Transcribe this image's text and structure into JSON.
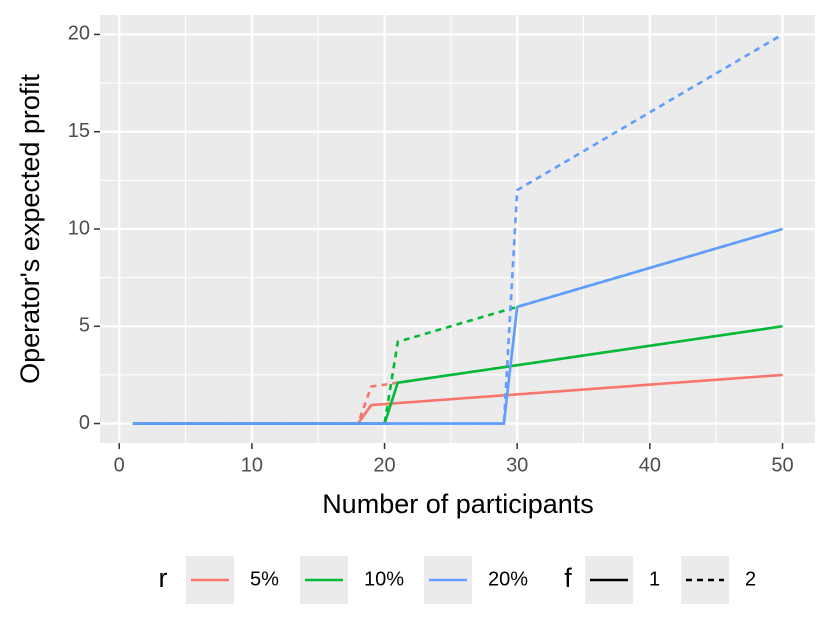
{
  "chart_data": {
    "type": "line",
    "xlabel": "Number of participants",
    "ylabel": "Operator's expected profit",
    "xlim": [
      -1.45,
      52.45
    ],
    "ylim": [
      -1,
      21
    ],
    "xticks": [
      0,
      10,
      20,
      30,
      40,
      50
    ],
    "yticks": [
      0,
      5,
      10,
      15,
      20
    ],
    "grid": true,
    "legend_position": "bottom",
    "color_legend": {
      "title": "r",
      "labels": [
        "5%",
        "10%",
        "20%"
      ],
      "colors": [
        "#F8766D",
        "#00BA38",
        "#619CFF"
      ]
    },
    "linetype_legend": {
      "title": "f",
      "labels": [
        "1",
        "2"
      ],
      "dashes": [
        "solid",
        "dashed"
      ]
    },
    "series": [
      {
        "r": 0,
        "f": 0,
        "x": [
          1,
          18,
          19,
          50
        ],
        "values": [
          0,
          0,
          0.95,
          2.5
        ]
      },
      {
        "r": 0,
        "f": 1,
        "x": [
          1,
          18,
          19,
          50
        ],
        "values": [
          0,
          0,
          1.9,
          5
        ]
      },
      {
        "r": 1,
        "f": 0,
        "x": [
          1,
          20,
          21,
          50
        ],
        "values": [
          0,
          0,
          2.1,
          5
        ]
      },
      {
        "r": 1,
        "f": 1,
        "x": [
          1,
          20,
          21,
          50
        ],
        "values": [
          0,
          0,
          4.2,
          10
        ]
      },
      {
        "r": 2,
        "f": 0,
        "x": [
          1,
          29,
          30,
          50
        ],
        "values": [
          0,
          0,
          6,
          10
        ]
      },
      {
        "r": 2,
        "f": 1,
        "x": [
          1,
          29,
          30,
          50
        ],
        "values": [
          0,
          0,
          12,
          20
        ]
      }
    ]
  }
}
